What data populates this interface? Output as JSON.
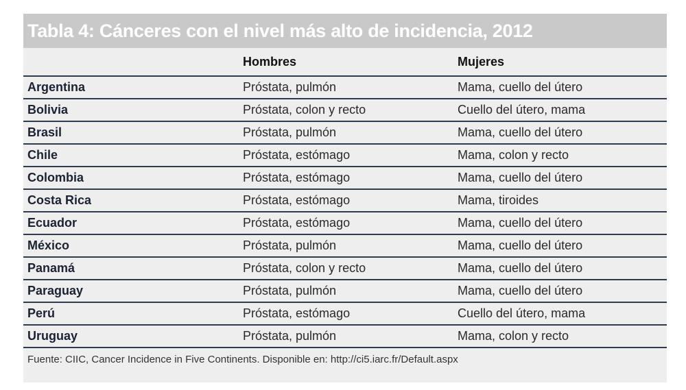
{
  "title": "Tabla 4: Cánceres con el nivel más alto de incidencia, 2012",
  "columns": [
    "",
    "Hombres",
    "Mujeres"
  ],
  "rows": [
    {
      "country": "Argentina",
      "hombres": "Próstata, pulmón",
      "mujeres": "Mama, cuello del útero"
    },
    {
      "country": "Bolivia",
      "hombres": "Próstata, colon y recto",
      "mujeres": "Cuello del útero, mama"
    },
    {
      "country": "Brasil",
      "hombres": "Próstata, pulmón",
      "mujeres": "Mama, cuello del útero"
    },
    {
      "country": "Chile",
      "hombres": "Próstata, estómago",
      "mujeres": "Mama, colon y recto"
    },
    {
      "country": "Colombia",
      "hombres": "Próstata, estómago",
      "mujeres": "Mama, cuello del útero"
    },
    {
      "country": "Costa Rica",
      "hombres": "Próstata, estómago",
      "mujeres": "Mama, tiroides"
    },
    {
      "country": "Ecuador",
      "hombres": "Próstata, estómago",
      "mujeres": "Mama, cuello del útero"
    },
    {
      "country": "México",
      "hombres": "Próstata, pulmón",
      "mujeres": "Mama, cuello del útero"
    },
    {
      "country": "Panamá",
      "hombres": "Próstata, colon y recto",
      "mujeres": "Mama, cuello del útero"
    },
    {
      "country": "Paraguay",
      "hombres": "Próstata, pulmón",
      "mujeres": "Mama, cuello del útero"
    },
    {
      "country": "Perú",
      "hombres": "Próstata, estómago",
      "mujeres": "Cuello del útero, mama"
    },
    {
      "country": "Uruguay",
      "hombres": "Próstata, pulmón",
      "mujeres": "Mama, colon y recto"
    }
  ],
  "source": "Fuente: CIIC, Cancer Incidence in Five Continents. Disponible en: http://ci5.iarc.fr/Default.aspx",
  "colors": {
    "title_bar": "#c9c9c9",
    "panel": "#eeeeee",
    "rule": "#2e3a4d"
  }
}
